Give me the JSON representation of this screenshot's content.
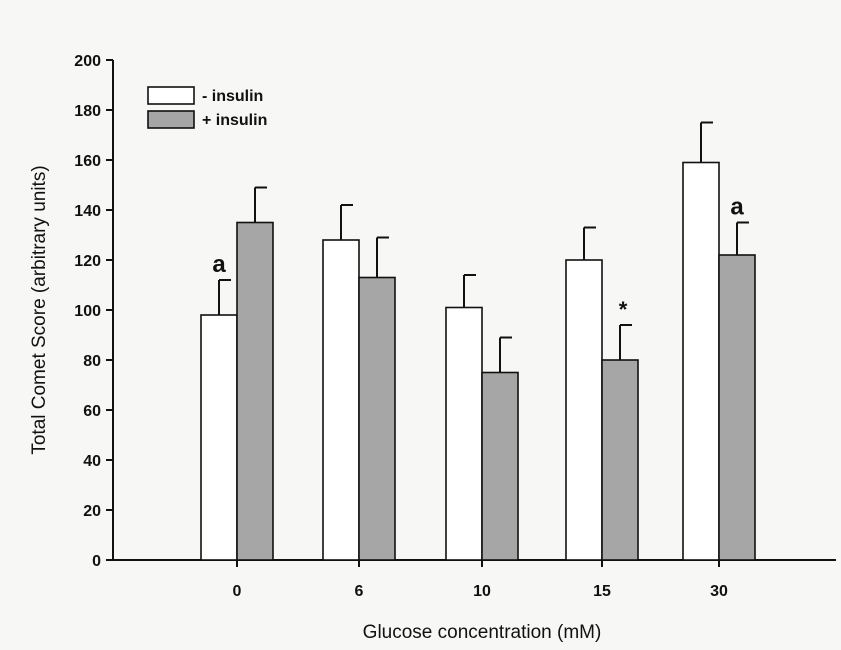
{
  "chart_data": {
    "type": "bar",
    "title": "",
    "xlabel": "Glucose concentration (mM)",
    "ylabel": "Total Comet Score (arbitrary units)",
    "ylim": [
      0,
      200
    ],
    "yticks": [
      0,
      20,
      40,
      60,
      80,
      100,
      120,
      140,
      160,
      180,
      200
    ],
    "categories": [
      "0",
      "6",
      "10",
      "15",
      "30"
    ],
    "series": [
      {
        "name": "- insulin",
        "color": "#ffffff",
        "values": [
          98,
          128,
          101,
          120,
          159
        ],
        "errors": [
          14,
          14,
          13,
          13,
          16
        ]
      },
      {
        "name": "+ insulin",
        "color": "#a6a6a6",
        "values": [
          135,
          113,
          75,
          80,
          122
        ],
        "errors": [
          14,
          16,
          14,
          14,
          13
        ]
      }
    ],
    "annotations": [
      {
        "text": "a",
        "category": "0",
        "series": "- insulin"
      },
      {
        "text": "*",
        "category": "15",
        "series": "+ insulin"
      },
      {
        "text": "a",
        "category": "30",
        "series": "+ insulin"
      }
    ],
    "legend": {
      "position": "top-left"
    },
    "grid": false
  }
}
